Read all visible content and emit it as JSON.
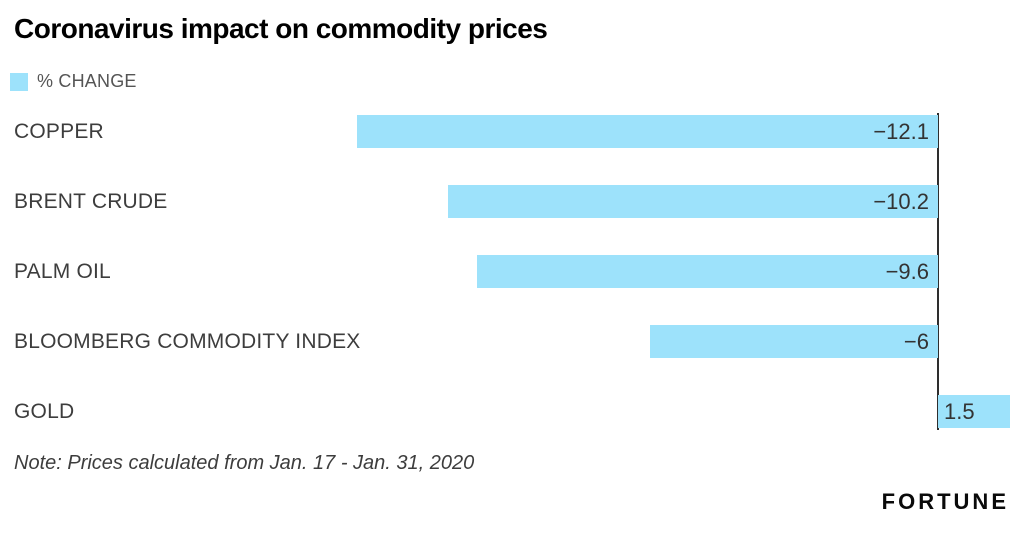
{
  "header": {
    "title": "Coronavirus impact on commodity prices"
  },
  "legend": {
    "label": "% CHANGE",
    "swatch_color": "#9DE2FB"
  },
  "chart_data": {
    "type": "bar",
    "orientation": "horizontal",
    "title": "Coronavirus impact on commodity prices",
    "series_name": "% CHANGE",
    "categories": [
      "COPPER",
      "BRENT CRUDE",
      "PALM OIL",
      "BLOOMBERG COMMODITY INDEX",
      "GOLD"
    ],
    "values": [
      -12.1,
      -10.2,
      -9.6,
      -6,
      1.5
    ],
    "value_labels": [
      "−12.1",
      "−10.2",
      "−9.6",
      "−6",
      "1.5"
    ],
    "bar_color": "#9DE2FB",
    "axis_color": "#2e2e2e",
    "baseline": 0,
    "xlim": [
      -12.1,
      1.8
    ],
    "grid": false,
    "legend_position": "top-left"
  },
  "note": "Note: Prices calculated from Jan. 17 - Jan. 31, 2020",
  "branding": {
    "logo": "FORTUNE"
  }
}
